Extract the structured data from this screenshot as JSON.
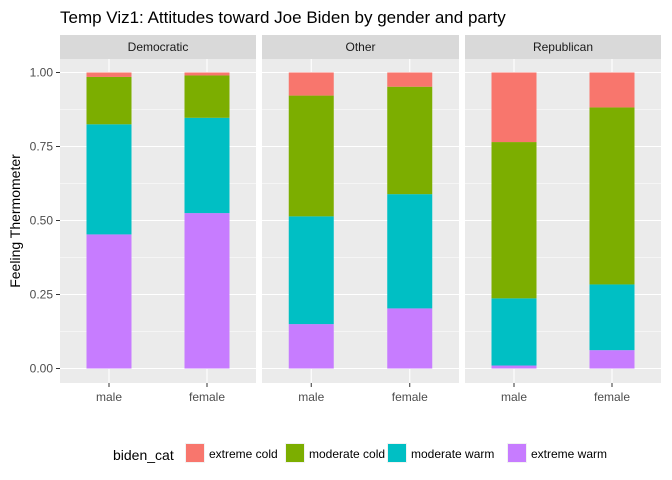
{
  "chart_data": {
    "type": "bar",
    "stacked": true,
    "title": "Temp Viz1: Attitudes toward Joe Biden by gender and party",
    "xlabel": "",
    "ylabel": "Feeling Thermometer",
    "ylim": [
      0,
      1
    ],
    "yticks": [
      "0.00",
      "0.25",
      "0.50",
      "0.75",
      "1.00"
    ],
    "grid": true,
    "legend_position": "bottom",
    "legend_title": "biden_cat",
    "categories": [
      "male",
      "female"
    ],
    "series": [
      {
        "name": "extreme cold",
        "color": "#F8766D"
      },
      {
        "name": "moderate cold",
        "color": "#7CAE00"
      },
      {
        "name": "moderate warm",
        "color": "#00BFC4"
      },
      {
        "name": "extreme warm",
        "color": "#C77CFF"
      }
    ],
    "panels": [
      {
        "label": "Democratic",
        "bars": [
          {
            "category": "male",
            "values": [
              0.015,
              0.16,
              0.372,
              0.453
            ]
          },
          {
            "category": "female",
            "values": [
              0.01,
              0.143,
              0.322,
              0.525
            ]
          }
        ]
      },
      {
        "label": "Other",
        "bars": [
          {
            "category": "male",
            "values": [
              0.078,
              0.408,
              0.364,
              0.15
            ]
          },
          {
            "category": "female",
            "values": [
              0.048,
              0.363,
              0.386,
              0.203
            ]
          }
        ]
      },
      {
        "label": "Republican",
        "bars": [
          {
            "category": "male",
            "values": [
              0.235,
              0.528,
              0.227,
              0.01
            ]
          },
          {
            "category": "female",
            "values": [
              0.118,
              0.598,
              0.222,
              0.062
            ]
          }
        ]
      }
    ]
  }
}
